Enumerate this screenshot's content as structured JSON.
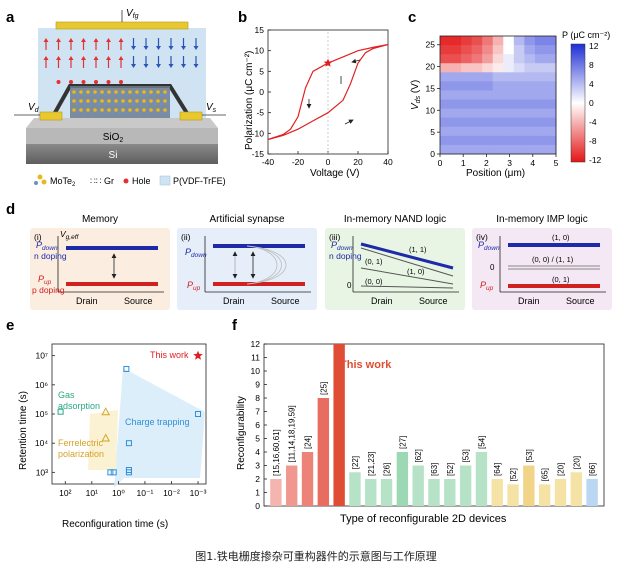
{
  "caption": "图1.铁电栅度掺杂可重构器件的示意图与工作原理",
  "panel_a": {
    "letter": "a",
    "vfg": "V",
    "vfg_sub": "fg",
    "vd": "V",
    "vd_sub": "d",
    "vs": "V",
    "vs_sub": "s",
    "sio2": "SiO",
    "sio2_sub": "2",
    "si": "Si",
    "legend": [
      {
        "label": "MoTe",
        "sub": "2",
        "icon": "mote2-crystal-icon"
      },
      {
        "label": "Gr",
        "icon": "graphene-icon"
      },
      {
        "label": "Hole",
        "icon": "hole-dot-icon"
      },
      {
        "label": "P(VDF-TrFE)",
        "icon": "pvdf-swatch-icon"
      }
    ],
    "colors": {
      "gate": "#e8c830",
      "ferro": "#cfe3f3",
      "up_arrow": "#e53030",
      "down_arrow": "#2a55b5",
      "sio2": "#b8b8b8",
      "si": "#7a7a7a"
    }
  },
  "panel_b": {
    "letter": "b",
    "chart_data": {
      "type": "line",
      "xlabel": "Voltage (V)",
      "ylabel": "Polarization (μC cm⁻²)",
      "xlim": [
        -40,
        40
      ],
      "ylim": [
        -15,
        15
      ],
      "xticks": [
        -40,
        -20,
        0,
        20,
        40
      ],
      "yticks": [
        -15,
        -10,
        -5,
        0,
        5,
        10,
        15
      ],
      "series": [
        {
          "values_upper": [
            [
              -40,
              -11.5
            ],
            [
              -30,
              -10.5
            ],
            [
              -20,
              -9
            ],
            [
              -10,
              -7
            ],
            [
              0,
              -5
            ],
            [
              10,
              -2
            ],
            [
              15,
              2
            ],
            [
              20,
              7
            ],
            [
              25,
              9.5
            ],
            [
              30,
              10.5
            ],
            [
              40,
              11.5
            ]
          ],
          "values_lower": [
            [
              40,
              11.5
            ],
            [
              30,
              10.8
            ],
            [
              20,
              10
            ],
            [
              10,
              8.5
            ],
            [
              0,
              7
            ],
            [
              -10,
              5
            ],
            [
              -15,
              1
            ],
            [
              -20,
              -6
            ],
            [
              -25,
              -9
            ],
            [
              -30,
              -10.3
            ],
            [
              -40,
              -11.5
            ]
          ]
        }
      ],
      "marker": {
        "x": 0,
        "y": 7
      },
      "line_color": "#e02020"
    }
  },
  "panel_c": {
    "letter": "c",
    "chart_data": {
      "type": "heatmap",
      "xlabel": "Position (μm)",
      "ylabel": "V_ds (V)",
      "xlim": [
        0,
        5
      ],
      "ylim": [
        0,
        27
      ],
      "xticks": [
        0,
        1,
        2,
        3,
        4,
        5
      ],
      "yticks": [
        0,
        5,
        10,
        15,
        20,
        25
      ],
      "colorbar_label": "P (μC cm⁻²)",
      "colorbar_ticks": [
        12,
        8,
        4,
        0,
        -4,
        -8,
        -12
      ],
      "rows_vds": [
        26,
        24,
        22,
        20,
        18,
        16,
        14,
        12,
        10,
        8,
        6,
        4,
        2
      ],
      "rows": [
        [
          -11,
          -11,
          -10,
          -9,
          -7,
          -4,
          0,
          4,
          6,
          7,
          7
        ],
        [
          -10,
          -10,
          -9,
          -8,
          -6,
          -3,
          0,
          3,
          5,
          6,
          6
        ],
        [
          -9,
          -9,
          -8,
          -7,
          -5,
          -2,
          1,
          3,
          4,
          5,
          5
        ],
        [
          -4,
          -4,
          -3,
          -3,
          -2,
          -1,
          1,
          2,
          3,
          3,
          3
        ],
        [
          5,
          5,
          5,
          5,
          5,
          4,
          4,
          4,
          4,
          4,
          4
        ],
        [
          6,
          6,
          6,
          6,
          6,
          5,
          5,
          5,
          5,
          5,
          5
        ],
        [
          5,
          5,
          5,
          5,
          5,
          5,
          5,
          5,
          5,
          5,
          5
        ],
        [
          6,
          6,
          6,
          6,
          6,
          6,
          6,
          6,
          6,
          6,
          6
        ],
        [
          5,
          5,
          5,
          5,
          5,
          5,
          5,
          5,
          5,
          5,
          5
        ],
        [
          6,
          6,
          6,
          6,
          6,
          6,
          6,
          6,
          6,
          6,
          6
        ],
        [
          5,
          5,
          5,
          5,
          5,
          5,
          5,
          5,
          5,
          5,
          5
        ],
        [
          6,
          6,
          6,
          6,
          6,
          6,
          6,
          6,
          6,
          6,
          6
        ],
        [
          5,
          5,
          5,
          5,
          5,
          5,
          5,
          5,
          5,
          5,
          5
        ]
      ]
    }
  },
  "panel_d": {
    "letter": "d",
    "subpanels": [
      {
        "title": "Memory",
        "num": "(i)",
        "p_down": "P",
        "p_down_sub": "down",
        "n_doping": "n doping",
        "vg": "V",
        "vg_sub": "g,eff",
        "p_up": "P",
        "p_up_sub": "up",
        "p_doping": "p doping",
        "drain": "Drain",
        "source": "Source",
        "bg": "#fbeee0"
      },
      {
        "title": "Artificial synapse",
        "num": "(ii)",
        "p_down": "P",
        "p_down_sub": "down",
        "p_up": "P",
        "p_up_sub": "up",
        "drain": "Drain",
        "source": "Source",
        "bg": "#e6eef9"
      },
      {
        "title": "In-memory NAND logic",
        "num": "(iii)",
        "p_down": "P",
        "p_down_sub": "down",
        "n_doping": "n doping",
        "zero": "0",
        "labels": [
          "(1, 1)",
          "(0, 1)",
          "(1, 0)",
          "(0, 0)"
        ],
        "drain": "Drain",
        "source": "Source",
        "bg": "#e9f5e4"
      },
      {
        "title": "In-memory IMP logic",
        "num": "(iv)",
        "p_down": "P",
        "p_down_sub": "down",
        "zero": "0",
        "p_up": "P",
        "p_up_sub": "up",
        "labels": [
          "(1, 0)",
          "(0, 0) / (1, 1)",
          "(0, 1)"
        ],
        "drain": "Drain",
        "source": "Source",
        "bg": "#f3e8f3"
      }
    ]
  },
  "panel_e": {
    "letter": "e",
    "chart_data": {
      "type": "scatter",
      "xlabel": "Reconfiguration time (s)",
      "ylabel": "Retention time (s)",
      "x_scale": "log-reversed",
      "y_scale": "log",
      "xtick_labels": [
        "10²",
        "10¹",
        "10⁰",
        "10⁻¹",
        "10⁻²",
        "10⁻³"
      ],
      "ytick_labels": [
        "10³",
        "10⁴",
        "10⁵",
        "10⁶",
        "10⁷"
      ],
      "series": [
        {
          "name": "Gas adsorption",
          "color": "#27a884",
          "points": [
            [
              150,
              120000
            ]
          ]
        },
        {
          "name": "Ferroelectric polarization",
          "color": "#d5a32a",
          "points": [
            [
              3,
              15000
            ],
            [
              3,
              120000
            ]
          ]
        },
        {
          "name": "Charge trapping",
          "color": "#2f8fd8",
          "points": [
            [
              2,
              1000
            ],
            [
              1.5,
              1000
            ],
            [
              0.4,
              1000
            ],
            [
              0.4,
              1200
            ],
            [
              0.4,
              10000
            ],
            [
              0.5,
              3500000
            ],
            [
              0.001,
              100000
            ]
          ]
        },
        {
          "name": "This work",
          "color": "#e02020",
          "points": [
            [
              0.001,
              10000000
            ]
          ]
        }
      ],
      "annotations": [
        "This work",
        "Gas",
        "adsorption",
        "Charge trapping",
        "Ferrelectric",
        "polarization"
      ]
    }
  },
  "panel_f": {
    "letter": "f",
    "chart_data": {
      "type": "bar",
      "xlabel": "Type of reconfigurable 2D devices",
      "ylabel": "Reconfigurability",
      "ylim": [
        0,
        12
      ],
      "yticks": [
        0,
        1,
        2,
        3,
        4,
        5,
        6,
        7,
        8,
        9,
        10,
        11,
        12
      ],
      "categories": [
        "[15,16,60,61]",
        "[11,14,18,19,59]",
        "[24]",
        "[25]",
        "This work",
        "[22]",
        "[21,23]",
        "[26]",
        "[27]",
        "[62]",
        "[63]",
        "[52]",
        "[53]",
        "[54]",
        "[64]",
        "[52]",
        "[53]",
        "[65]",
        "[20]",
        "[20]",
        "[66]"
      ],
      "values": [
        2,
        3,
        4,
        8,
        12,
        2.5,
        2,
        2,
        4,
        3,
        2,
        2,
        3,
        4,
        2,
        1.6,
        3,
        1.6,
        2,
        2.5,
        2
      ],
      "colors": [
        "#f4b5b0",
        "#f09890",
        "#ec8278",
        "#e96c60",
        "#e04d35",
        "#b6e3c8",
        "#b6e3c8",
        "#b6e3c8",
        "#9bd8b3",
        "#b6e3c8",
        "#b6e3c8",
        "#b6e3c8",
        "#b6e3c8",
        "#b6e3c8",
        "#f5e3a6",
        "#f5e3a6",
        "#f1d488",
        "#f5e3a6",
        "#f5e3a6",
        "#f5e3a6",
        "#b9d6f2"
      ],
      "highlight_label": "This work"
    }
  }
}
